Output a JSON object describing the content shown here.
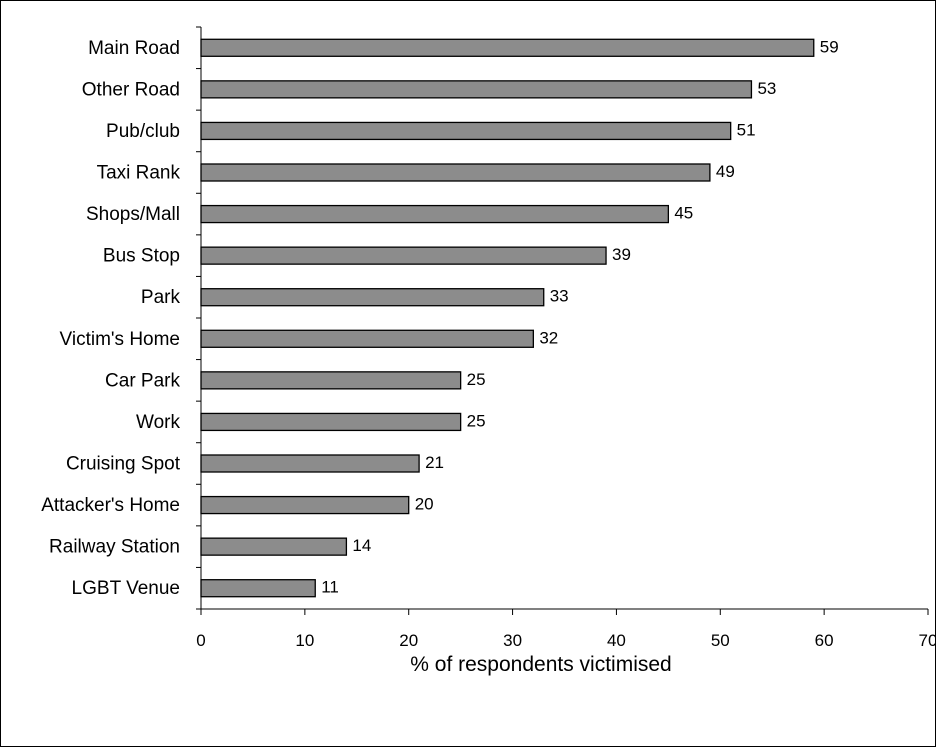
{
  "chart_data": {
    "type": "bar",
    "orientation": "horizontal",
    "categories": [
      "Main Road",
      "Other Road",
      "Pub/club",
      "Taxi Rank",
      "Shops/Mall",
      "Bus Stop",
      "Park",
      "Victim's Home",
      "Car Park",
      "Work",
      "Cruising Spot",
      "Attacker's Home",
      "Railway Station",
      "LGBT Venue"
    ],
    "values": [
      59,
      53,
      51,
      49,
      45,
      39,
      33,
      32,
      25,
      25,
      21,
      20,
      14,
      11
    ],
    "xlabel": "% of respondents victimised",
    "ylabel": "",
    "title": "",
    "xlim": [
      0,
      70
    ],
    "xticks": [
      "0",
      "10",
      "20",
      "30",
      "40",
      "50",
      "60",
      "70"
    ],
    "grid": false,
    "data_labels": true,
    "bar_color": "#8c8c8c",
    "bar_edge_color": "#000000"
  }
}
